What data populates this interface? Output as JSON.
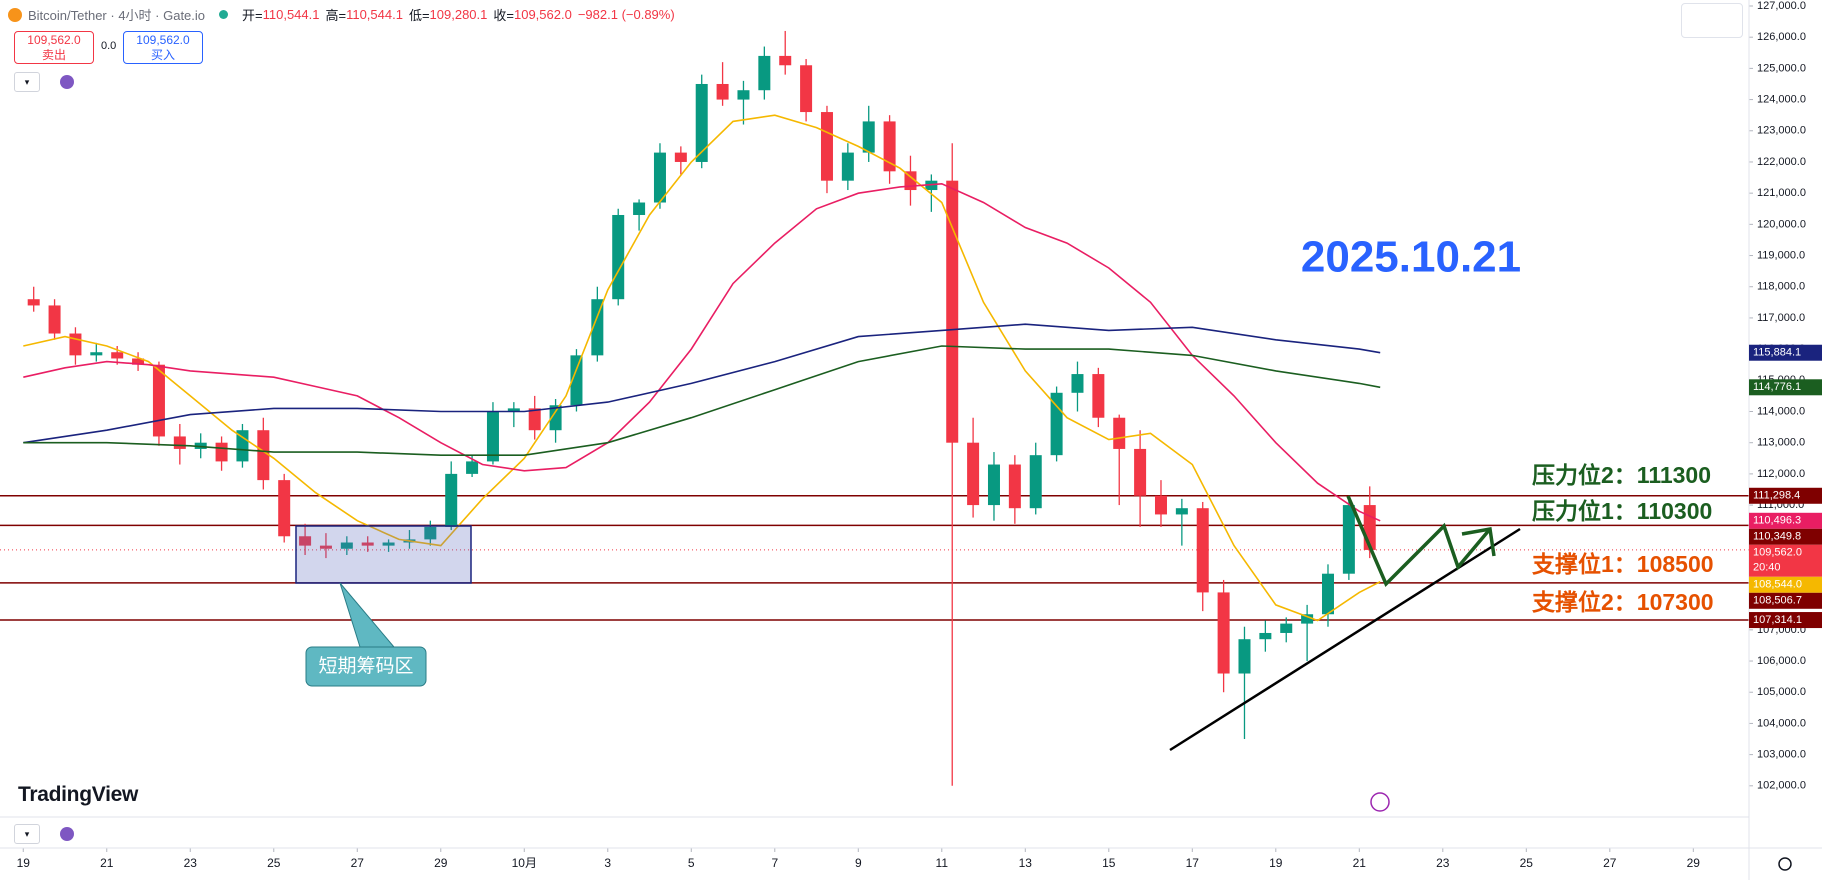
{
  "header": {
    "symbol": "Bitcoin/Tether · 4小时 · Gate.io",
    "ohlc": [
      {
        "label": "开=",
        "value": "110,544.1"
      },
      {
        "label": "高=",
        "value": "110,544.1"
      },
      {
        "label": "低=",
        "value": "109,280.1"
      },
      {
        "label": "收=",
        "value": "109,562.0"
      }
    ],
    "change": "−982.1 (−0.89%)"
  },
  "trade_buttons": {
    "sell_price": "109,562.0",
    "sell_label": "卖出",
    "spread": "0.0",
    "buy_price": "109,562.0",
    "buy_label": "买入"
  },
  "branding": "TradingView",
  "chart_data": {
    "type": "candlestick",
    "up_color": "#089981",
    "down_color": "#f23645",
    "x": [
      0.25,
      0.75,
      1.25,
      1.75,
      2.25,
      2.75,
      3.25,
      3.75,
      4.25,
      4.75,
      5.25,
      5.75,
      6.25,
      6.75,
      7.25,
      7.75,
      8.25,
      8.75,
      9.25,
      9.75,
      10.25,
      10.75,
      11.25,
      11.75,
      12.25,
      12.75,
      13.25,
      13.75,
      14.25,
      14.75,
      15.25,
      15.75,
      16.25,
      16.75,
      17.25,
      17.75,
      18.25,
      18.75,
      19.25,
      19.75,
      20.25,
      20.75,
      21.25,
      21.75,
      22.25,
      22.75,
      23.25,
      23.75,
      24.25,
      24.75,
      25.25,
      25.75,
      26.25,
      26.75,
      27.25,
      27.75,
      28.25,
      28.75,
      29.25,
      29.75,
      30.25,
      30.75,
      31.25,
      31.75,
      32.25
    ],
    "open": [
      117600,
      117400,
      116500,
      115800,
      115900,
      115700,
      115500,
      113200,
      112800,
      113000,
      112400,
      113400,
      111800,
      110000,
      109700,
      109600,
      109800,
      109700,
      109800,
      109900,
      110300,
      112000,
      112400,
      114000,
      114100,
      113400,
      114200,
      115800,
      117600,
      120300,
      120700,
      122300,
      122000,
      124500,
      124000,
      124300,
      125400,
      125100,
      123600,
      121400,
      122300,
      123300,
      121700,
      121100,
      121400,
      113000,
      111000,
      112300,
      110900,
      112600,
      114600,
      115200,
      113800,
      112800,
      111300,
      110700,
      110900,
      108200,
      105600,
      106700,
      106900,
      107200,
      107500,
      108800,
      111000
    ],
    "high": [
      118000,
      117600,
      116700,
      116200,
      116100,
      115900,
      115600,
      113600,
      113300,
      113200,
      113600,
      113800,
      112000,
      110400,
      110100,
      110000,
      110000,
      109900,
      110200,
      110500,
      112400,
      112600,
      114300,
      114300,
      114500,
      114400,
      116000,
      118000,
      120500,
      120800,
      122600,
      122500,
      124800,
      125200,
      124600,
      125700,
      126200,
      125300,
      123800,
      122600,
      123800,
      123500,
      122200,
      121600,
      122600,
      113800,
      112700,
      112600,
      113000,
      114800,
      115600,
      115400,
      113900,
      113400,
      111800,
      111200,
      111100,
      108600,
      107100,
      107300,
      107400,
      107800,
      109100,
      111200,
      111600
    ],
    "low": [
      117200,
      116300,
      115500,
      115600,
      115500,
      115300,
      112900,
      112300,
      112500,
      112100,
      112200,
      111500,
      109800,
      109400,
      109300,
      109400,
      109500,
      109500,
      109600,
      109700,
      110200,
      111900,
      112300,
      113500,
      113100,
      113000,
      114000,
      115600,
      117400,
      119800,
      120500,
      121600,
      121800,
      123800,
      123200,
      124000,
      124800,
      123300,
      121000,
      121100,
      122000,
      121300,
      120600,
      120400,
      102000,
      110600,
      110500,
      110400,
      110700,
      112400,
      114000,
      113500,
      111000,
      110300,
      110300,
      109700,
      107600,
      105000,
      103500,
      106300,
      106600,
      106000,
      107100,
      108600,
      109300
    ],
    "close": [
      117400,
      116500,
      115800,
      115900,
      115700,
      115500,
      113200,
      112800,
      113000,
      112400,
      113400,
      111800,
      110000,
      109700,
      109600,
      109800,
      109700,
      109800,
      109900,
      110300,
      112000,
      112400,
      114000,
      114100,
      113400,
      114200,
      115800,
      117600,
      120300,
      120700,
      122300,
      122000,
      124500,
      124000,
      124300,
      125400,
      125100,
      123600,
      121400,
      122300,
      123300,
      121700,
      121100,
      121400,
      113000,
      111000,
      112300,
      110900,
      112600,
      114600,
      115200,
      113800,
      112800,
      111300,
      110700,
      110900,
      108200,
      105600,
      106700,
      106900,
      107200,
      107500,
      108800,
      111000,
      109562
    ],
    "moving_averages": [
      {
        "color": "#f5b800",
        "label": "108,544.0",
        "x": [
          0,
          1,
          2,
          3,
          4,
          5,
          6,
          7,
          8,
          9,
          10,
          11,
          12,
          13,
          14,
          15,
          16,
          17,
          18,
          19,
          20,
          21,
          22,
          23,
          24,
          25,
          26,
          27,
          28,
          29,
          30,
          31,
          32,
          32.5
        ],
        "values": [
          116100,
          116400,
          116100,
          115600,
          114500,
          113400,
          112500,
          111400,
          110500,
          109900,
          109700,
          111200,
          112500,
          114500,
          117900,
          120300,
          122000,
          123300,
          123500,
          123100,
          122500,
          121800,
          120700,
          117500,
          115300,
          113800,
          113100,
          113300,
          112300,
          109700,
          107800,
          107300,
          108200,
          108544
        ]
      },
      {
        "color": "#e91e63",
        "label": "110,496.3",
        "x": [
          0,
          1,
          2,
          3,
          4,
          5,
          6,
          7,
          8,
          9,
          10,
          11,
          12,
          13,
          14,
          15,
          16,
          17,
          18,
          19,
          20,
          21,
          22,
          23,
          24,
          25,
          26,
          27,
          28,
          29,
          30,
          31,
          32,
          32.5
        ],
        "values": [
          115100,
          115400,
          115600,
          115500,
          115300,
          115200,
          115100,
          114800,
          114500,
          113800,
          113000,
          112300,
          112100,
          112200,
          113000,
          114300,
          116000,
          118100,
          119400,
          120500,
          121000,
          121200,
          121300,
          120700,
          119900,
          119400,
          118600,
          117500,
          115800,
          114500,
          113000,
          111700,
          110800,
          110496.3
        ]
      },
      {
        "color": "#1a237e",
        "label": "115,884.1",
        "x": [
          0,
          2,
          4,
          6,
          8,
          10,
          12,
          14,
          16,
          18,
          20,
          22,
          24,
          26,
          28,
          30,
          32,
          32.5
        ],
        "values": [
          113000,
          113400,
          113900,
          114100,
          114100,
          114000,
          114000,
          114300,
          114900,
          115600,
          116400,
          116600,
          116800,
          116600,
          116700,
          116300,
          116000,
          115884.1
        ]
      },
      {
        "color": "#1b5e20",
        "label": "114,776.1",
        "x": [
          0,
          2,
          4,
          6,
          8,
          10,
          12,
          14,
          16,
          18,
          20,
          22,
          24,
          26,
          28,
          30,
          32,
          32.5
        ],
        "values": [
          113000,
          113000,
          112900,
          112700,
          112700,
          112600,
          112600,
          113000,
          113800,
          114700,
          115600,
          116100,
          116000,
          116000,
          115800,
          115300,
          114900,
          114776.1
        ]
      }
    ],
    "price_lines": [
      {
        "value": 111298.4,
        "label": "111,298.4",
        "color": "#7f0000"
      },
      {
        "value": 110349.8,
        "label": "110,349.8",
        "color": "#7f0000"
      },
      {
        "value": 108506.7,
        "label": "108,506.7",
        "color": "#7f0000"
      },
      {
        "value": 107314.1,
        "label": "107,314.1",
        "color": "#7f0000"
      }
    ],
    "last_price": {
      "value": 109562,
      "label": "109,562.0",
      "countdown": "20:40",
      "color": "#f23645"
    },
    "annotations": {
      "resistance_2": "压力位2：111300",
      "resistance_1": "压力位1：110300",
      "support_1": "支撑位1：108500",
      "support_2": "支撑位2：107300",
      "date": "2025.10.21",
      "zone": "短期筹码区"
    },
    "xlim": [
      -0.557,
      41.19
    ],
    "ylim": [
      101000,
      127000
    ],
    "xticks": [
      {
        "value": 0,
        "label": "19"
      },
      {
        "value": 2,
        "label": "21"
      },
      {
        "value": 4,
        "label": "23"
      },
      {
        "value": 6,
        "label": "25"
      },
      {
        "value": 8,
        "label": "27"
      },
      {
        "value": 10,
        "label": "29"
      },
      {
        "value": 12,
        "label": "10月"
      },
      {
        "value": 14,
        "label": "3"
      },
      {
        "value": 16,
        "label": "5"
      },
      {
        "value": 18,
        "label": "7"
      },
      {
        "value": 20,
        "label": "9"
      },
      {
        "value": 22,
        "label": "11"
      },
      {
        "value": 24,
        "label": "13"
      },
      {
        "value": 26,
        "label": "15"
      },
      {
        "value": 28,
        "label": "17"
      },
      {
        "value": 30,
        "label": "19"
      },
      {
        "value": 32,
        "label": "21"
      },
      {
        "value": 34,
        "label": "23"
      },
      {
        "value": 36,
        "label": "25"
      },
      {
        "value": 38,
        "label": "27"
      },
      {
        "value": 40,
        "label": "29"
      }
    ],
    "yticks": [
      {
        "value": 102000,
        "label": "102,000.0"
      },
      {
        "value": 103000,
        "label": "103,000.0"
      },
      {
        "value": 104000,
        "label": "104,000.0"
      },
      {
        "value": 105000,
        "label": "105,000.0"
      },
      {
        "value": 106000,
        "label": "106,000.0"
      },
      {
        "value": 107000,
        "label": "107,000.0"
      },
      {
        "value": 108000,
        "label": "108,000.0"
      },
      {
        "value": 109000,
        "label": "109,000.0"
      },
      {
        "value": 110000,
        "label": "110,000.0"
      },
      {
        "value": 111000,
        "label": "111,000.0"
      },
      {
        "value": 112000,
        "label": "112,000.0"
      },
      {
        "value": 113000,
        "label": "113,000.0"
      },
      {
        "value": 114000,
        "label": "114,000.0"
      },
      {
        "value": 115000,
        "label": "115,000.0"
      },
      {
        "value": 116000,
        "label": "116,000.0"
      },
      {
        "value": 117000,
        "label": "117,000.0"
      },
      {
        "value": 118000,
        "label": "118,000.0"
      },
      {
        "value": 119000,
        "label": "119,000.0"
      },
      {
        "value": 120000,
        "label": "120,000.0"
      },
      {
        "value": 121000,
        "label": "121,000.0"
      },
      {
        "value": 122000,
        "label": "122,000.0"
      },
      {
        "value": 123000,
        "label": "123,000.0"
      },
      {
        "value": 124000,
        "label": "124,000.0"
      },
      {
        "value": 125000,
        "label": "125,000.0"
      },
      {
        "value": 126000,
        "label": "126,000.0"
      },
      {
        "value": 127000,
        "label": "127,000.0"
      }
    ],
    "grid": false
  }
}
